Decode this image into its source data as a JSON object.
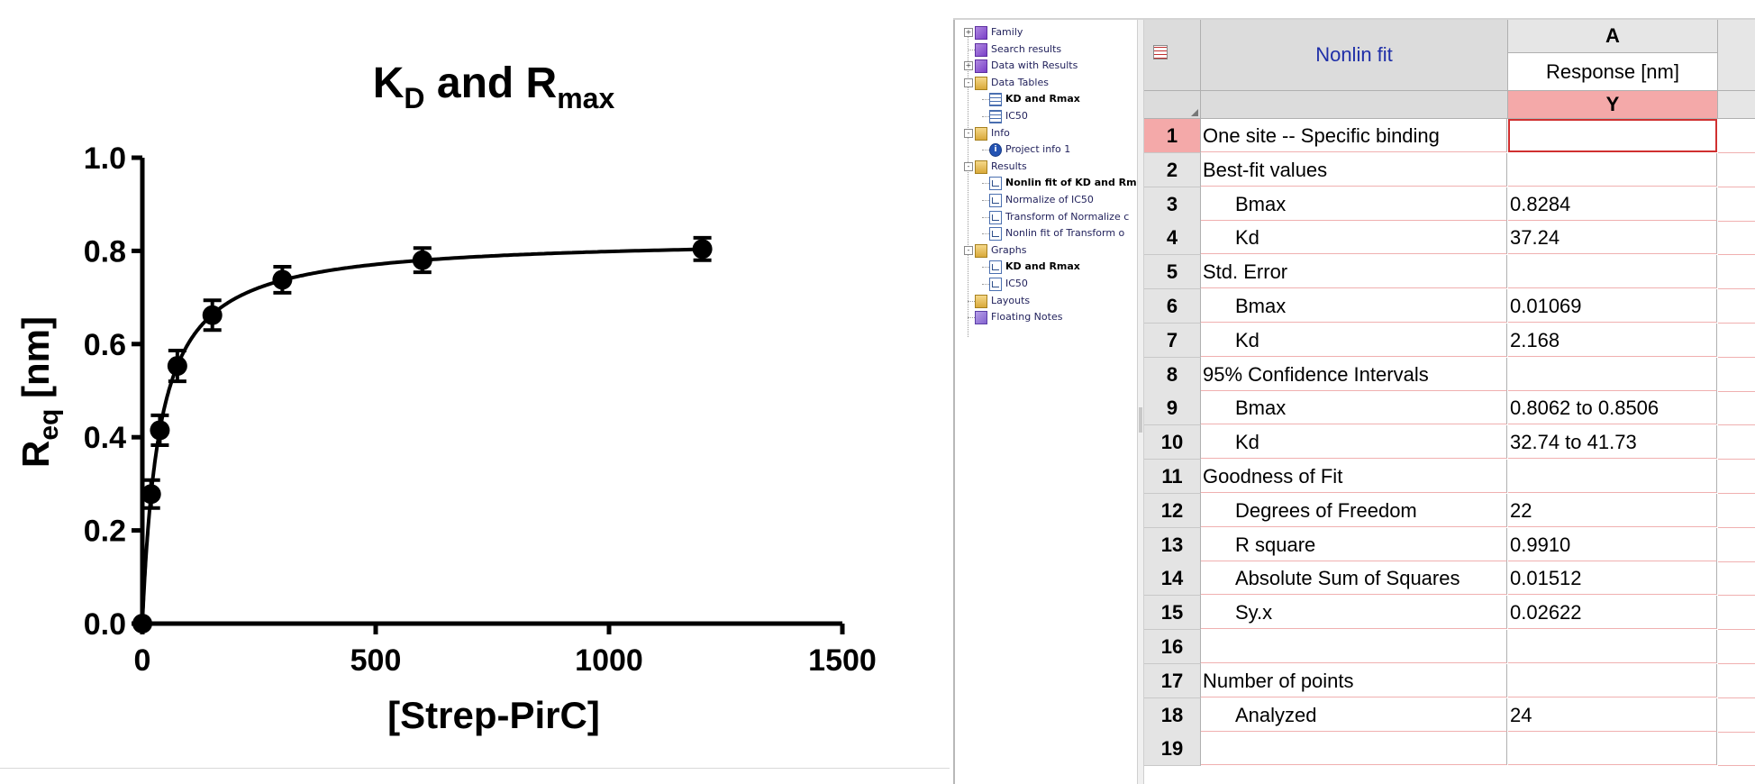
{
  "chart_data": {
    "type": "scatter",
    "title": "K_D and R_max",
    "title_parts": {
      "k": "K",
      "k_sub": "D",
      "and": " and R",
      "r_sub": "max"
    },
    "xlabel": "[Strep-PirC]",
    "ylabel_parts": {
      "r": "R",
      "r_sub": "eq",
      "unit": " [nm]"
    },
    "xlim": [
      0,
      1500
    ],
    "ylim": [
      0,
      1.0
    ],
    "x_ticks": [
      0,
      500,
      1000,
      1500
    ],
    "y_ticks": [
      "0.0",
      "0.2",
      "0.4",
      "0.6",
      "0.8",
      "1.0"
    ],
    "y_tick_values": [
      0,
      0.2,
      0.4,
      0.6,
      0.8,
      1.0
    ],
    "points": [
      {
        "x": 0,
        "y": 0,
        "err": 0
      },
      {
        "x": 18.75,
        "y": 0.278,
        "err": 0.03
      },
      {
        "x": 37.5,
        "y": 0.415,
        "err": 0.032
      },
      {
        "x": 75,
        "y": 0.553,
        "err": 0.033
      },
      {
        "x": 150,
        "y": 0.662,
        "err": 0.032
      },
      {
        "x": 300,
        "y": 0.738,
        "err": 0.028
      },
      {
        "x": 600,
        "y": 0.78,
        "err": 0.026
      },
      {
        "x": 1200,
        "y": 0.804,
        "err": 0.024
      }
    ],
    "fit": {
      "model": "One site -- Specific binding",
      "Bmax": 0.8284,
      "Kd": 37.24
    },
    "grid": false,
    "legend": "none"
  },
  "navigator": {
    "items": [
      {
        "label": "Family",
        "icon": "family-icon",
        "bold": false
      },
      {
        "label": "Search results",
        "icon": "family-icon",
        "bold": false
      },
      {
        "label": "Data with Results",
        "icon": "family-icon",
        "bold": false
      },
      {
        "label": "Data Tables",
        "icon": "folder-icon",
        "bold": false
      },
      {
        "label": "KD and Rmax",
        "icon": "data-table-icon",
        "bold": true
      },
      {
        "label": "IC50",
        "icon": "data-table-icon",
        "bold": false
      },
      {
        "label": "Info",
        "icon": "folder-icon",
        "bold": false
      },
      {
        "label": "Project info 1",
        "icon": "info-icon",
        "bold": false
      },
      {
        "label": "Results",
        "icon": "folder-icon",
        "bold": false
      },
      {
        "label": "Nonlin fit of KD and Rm",
        "icon": "result-icon",
        "bold": true
      },
      {
        "label": "Normalize of IC50",
        "icon": "result-icon",
        "bold": false
      },
      {
        "label": "Transform of Normalize c",
        "icon": "transform-icon",
        "bold": false
      },
      {
        "label": "Nonlin fit of Transform o",
        "icon": "result-icon",
        "bold": false
      },
      {
        "label": "Graphs",
        "icon": "folder-icon",
        "bold": false
      },
      {
        "label": "KD and Rmax",
        "icon": "graph-icon",
        "bold": true
      },
      {
        "label": "IC50",
        "icon": "graph-icon",
        "bold": false
      },
      {
        "label": "Layouts",
        "icon": "folder-icon",
        "bold": false
      },
      {
        "label": "Floating Notes",
        "icon": "notes-icon",
        "bold": false
      }
    ]
  },
  "sheet": {
    "title": "Nonlin fit",
    "column_letter": "A",
    "column_title": "Response [nm]",
    "subcolumn": "Y",
    "rows": [
      {
        "num": "1",
        "label": "One site -- Specific binding",
        "value": "",
        "indent": false
      },
      {
        "num": "2",
        "label": "Best-fit values",
        "value": "",
        "indent": false
      },
      {
        "num": "3",
        "label": "Bmax",
        "value": "0.8284",
        "indent": true
      },
      {
        "num": "4",
        "label": "Kd",
        "value": "37.24",
        "indent": true
      },
      {
        "num": "5",
        "label": "Std. Error",
        "value": "",
        "indent": false
      },
      {
        "num": "6",
        "label": "Bmax",
        "value": "0.01069",
        "indent": true
      },
      {
        "num": "7",
        "label": "Kd",
        "value": "2.168",
        "indent": true
      },
      {
        "num": "8",
        "label": "95% Confidence Intervals",
        "value": "",
        "indent": false
      },
      {
        "num": "9",
        "label": "Bmax",
        "value": "0.8062 to 0.8506",
        "indent": true
      },
      {
        "num": "10",
        "label": "Kd",
        "value": "32.74 to 41.73",
        "indent": true
      },
      {
        "num": "11",
        "label": "Goodness of Fit",
        "value": "",
        "indent": false
      },
      {
        "num": "12",
        "label": "Degrees of Freedom",
        "value": "22",
        "indent": true
      },
      {
        "num": "13",
        "label": "R square",
        "value": "0.9910",
        "indent": true
      },
      {
        "num": "14",
        "label": "Absolute Sum of Squares",
        "value": "0.01512",
        "indent": true
      },
      {
        "num": "15",
        "label": "Sy.x",
        "value": "0.02622",
        "indent": true
      },
      {
        "num": "16",
        "label": "",
        "value": "",
        "indent": false
      },
      {
        "num": "17",
        "label": "Number of points",
        "value": "",
        "indent": false
      },
      {
        "num": "18",
        "label": "Analyzed",
        "value": "24",
        "indent": true
      },
      {
        "num": "19",
        "label": "",
        "value": "",
        "indent": false
      }
    ]
  },
  "colors": {
    "selection_fill": "#f4a9a9",
    "active_cell_border": "#d03030",
    "title_text": "#1f2fa8"
  }
}
